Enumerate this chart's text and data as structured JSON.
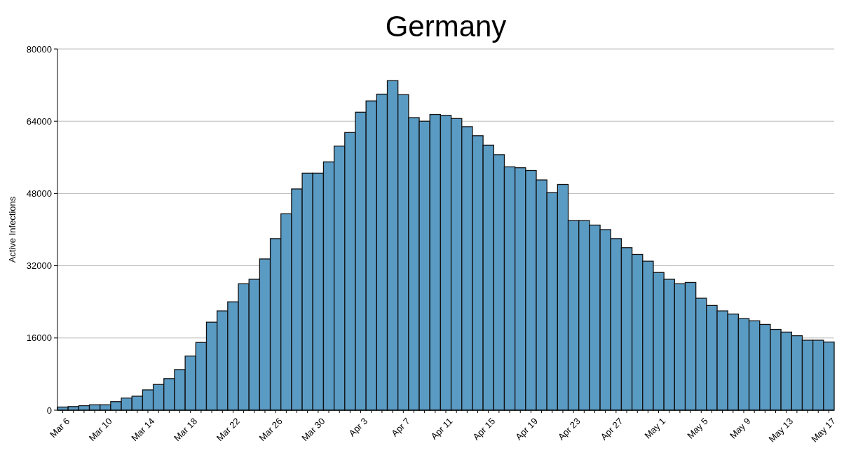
{
  "chart_data": {
    "type": "bar",
    "title": "Germany",
    "ylabel": "Active Infections",
    "categories": [
      "Mar 6",
      null,
      null,
      null,
      "Mar 10",
      null,
      null,
      null,
      "Mar 14",
      null,
      null,
      null,
      "Mar 18",
      null,
      null,
      null,
      "Mar 22",
      null,
      null,
      null,
      "Mar 26",
      null,
      null,
      null,
      "Mar 30",
      null,
      null,
      null,
      "Apr 3",
      null,
      null,
      null,
      "Apr 7",
      null,
      null,
      null,
      "Apr 11",
      null,
      null,
      null,
      "Apr 15",
      null,
      null,
      null,
      "Apr 19",
      null,
      null,
      null,
      "Apr 23",
      null,
      null,
      null,
      "Apr 27",
      null,
      null,
      null,
      "May 1",
      null,
      null,
      null,
      "May 5",
      null,
      null,
      null,
      "May 9",
      null,
      null,
      null,
      "May 13",
      null,
      null,
      null,
      "May 17"
    ],
    "values": [
      700,
      800,
      1000,
      1200,
      1200,
      1900,
      2700,
      3100,
      4500,
      5700,
      7000,
      9000,
      12000,
      15000,
      19500,
      22000,
      24000,
      28000,
      29000,
      33500,
      38000,
      43500,
      49000,
      52500,
      52500,
      55000,
      58500,
      61500,
      66000,
      68500,
      70000,
      73000,
      69900,
      64800,
      64000,
      65500,
      65300,
      64600,
      62800,
      60800,
      58700,
      56600,
      53900,
      53700,
      53100,
      51000,
      48200,
      50000,
      42000,
      42000,
      41000,
      40000,
      38000,
      36000,
      34500,
      33000,
      30500,
      29000,
      28000,
      28300,
      24800,
      23200,
      22000,
      21300,
      20300,
      19800,
      19000,
      17900,
      17300,
      16500,
      15500,
      15500,
      15100
    ],
    "color": "#5a9bc4",
    "ylim": [
      0,
      80000
    ],
    "yticks": [
      0,
      16000,
      32000,
      48000,
      64000,
      80000
    ],
    "grid": "y"
  }
}
